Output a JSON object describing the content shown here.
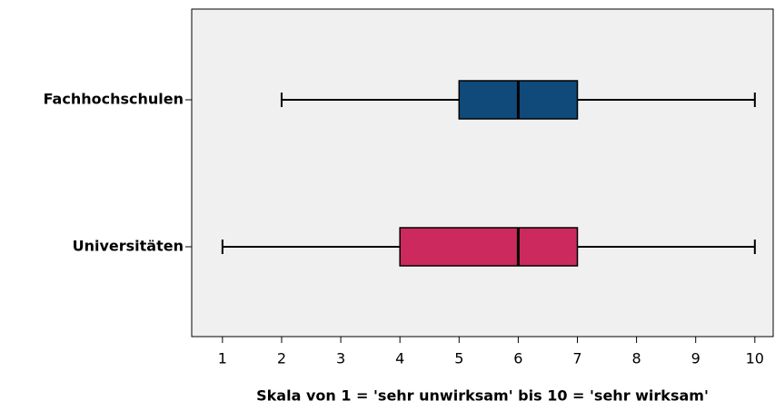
{
  "chart_data": {
    "type": "box",
    "xlabel": "Skala von 1 = 'sehr unwirksam' bis 10 = 'sehr wirksam'",
    "boxes": [
      {
        "category": "Fachhochschulen",
        "color": "#0f4a7b",
        "whisker_low": 2,
        "q1": 5,
        "median": 6,
        "q3": 7,
        "whisker_high": 10
      },
      {
        "category": "Universitäten",
        "color": "#cc2a5f",
        "whisker_low": 1,
        "q1": 4,
        "median": 6,
        "q3": 7,
        "whisker_high": 10
      }
    ],
    "xlim": [
      0.48,
      10.31
    ],
    "xticks": [
      1,
      2,
      3,
      4,
      5,
      6,
      7,
      8,
      9,
      10
    ]
  }
}
